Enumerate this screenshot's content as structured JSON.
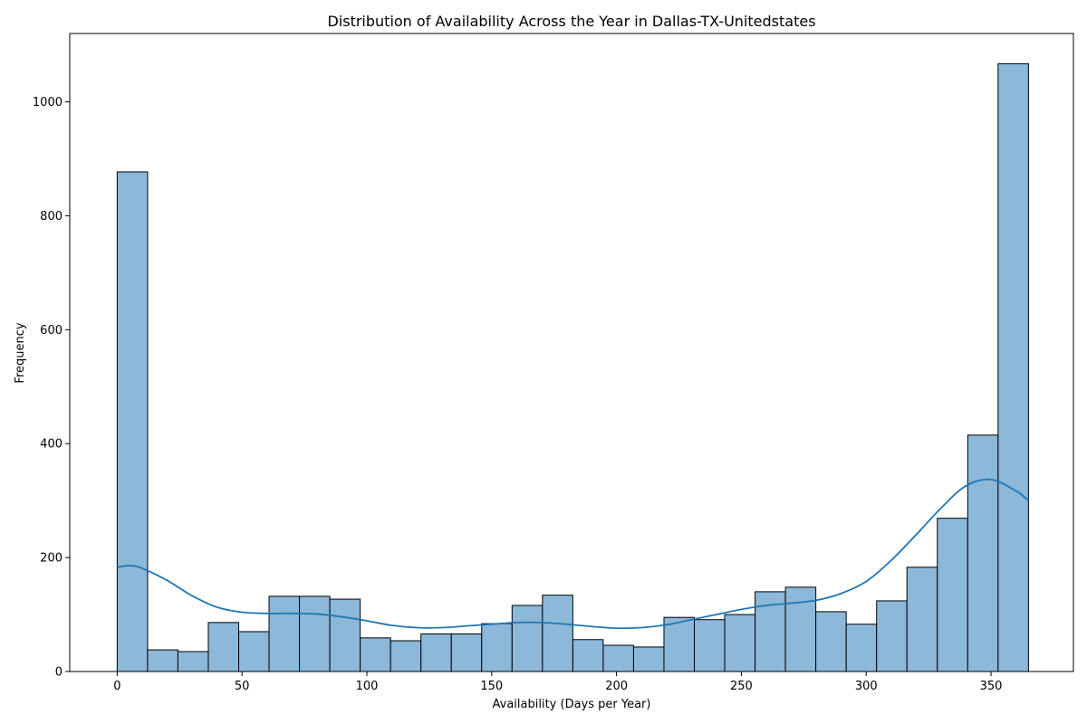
{
  "chart_data": {
    "type": "bar",
    "title": "Distribution of Availability Across the Year in Dallas-TX-Unitedstates",
    "xlabel": "Availability (Days per Year)",
    "ylabel": "Frequency",
    "xlim": [
      -19,
      383
    ],
    "ylim": [
      0,
      1120
    ],
    "xticks": [
      0,
      50,
      100,
      150,
      200,
      250,
      300,
      350
    ],
    "yticks": [
      0,
      200,
      400,
      600,
      800,
      1000
    ],
    "grid": false,
    "bin_edges": [
      0,
      12.17,
      24.33,
      36.5,
      48.67,
      60.83,
      73,
      85.17,
      97.33,
      109.5,
      121.67,
      133.83,
      146,
      158.17,
      170.33,
      182.5,
      194.67,
      206.83,
      219,
      231.17,
      243.33,
      255.5,
      267.67,
      279.83,
      292,
      304.17,
      316.33,
      328.5,
      340.67,
      352.83,
      365
    ],
    "values": [
      877,
      38,
      35,
      86,
      70,
      132,
      132,
      127,
      59,
      54,
      66,
      66,
      84,
      116,
      134,
      56,
      46,
      43,
      95,
      91,
      100,
      140,
      148,
      105,
      83,
      124,
      183,
      269,
      415,
      1067
    ],
    "kde": {
      "x": [
        0,
        5,
        10,
        20,
        30,
        40,
        50,
        60,
        70,
        80,
        90,
        100,
        110,
        120,
        130,
        140,
        150,
        160,
        170,
        180,
        190,
        200,
        210,
        220,
        230,
        240,
        250,
        260,
        270,
        280,
        290,
        300,
        310,
        320,
        330,
        340,
        350,
        360,
        365
      ],
      "y": [
        183,
        186,
        181,
        160,
        133,
        113,
        104,
        102,
        102,
        101,
        96,
        89,
        81,
        77,
        77,
        80,
        83,
        86,
        86,
        83,
        79,
        76,
        77,
        82,
        91,
        100,
        109,
        116,
        120,
        125,
        137,
        158,
        195,
        240,
        287,
        326,
        337,
        317,
        300
      ]
    },
    "colors": {
      "bar_fill": "#8cb8da",
      "bar_edge": "#000000",
      "kde_line": "#1f77b4"
    }
  }
}
